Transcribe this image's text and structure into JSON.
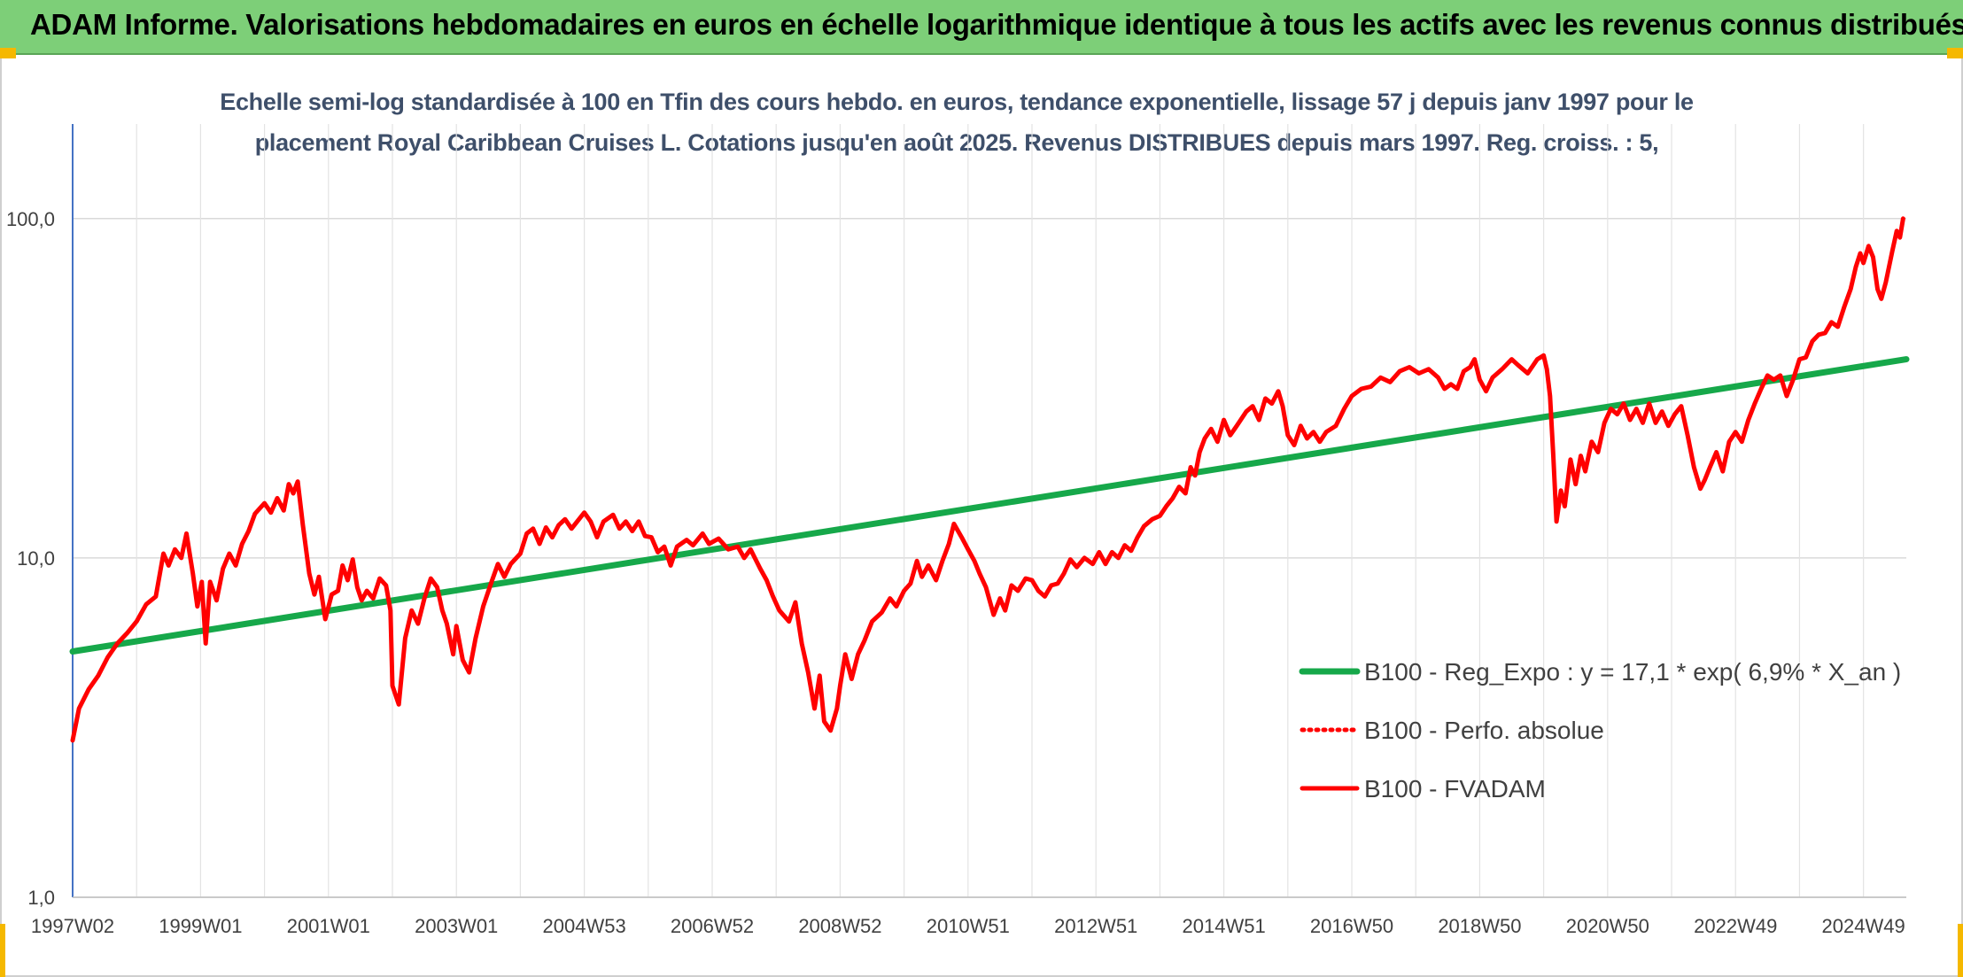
{
  "header": {
    "title": "ADAM Informe. Valorisations hebdomadaires en euros en échelle logarithmique identique à tous les actifs avec les revenus connus distribués"
  },
  "chart_data": {
    "type": "line",
    "title_line1": "Echelle semi-log standardisée à 100 en Tfin des cours hebdo. en euros, tendance exponentielle, lissage 57 j depuis janv 1997 pour le",
    "title_line2": "placement Royal Caribbean Cruises L. Cotations jusqu'en août 2025. Revenus DISTRIBUES depuis mars 1997. Reg. croiss. : 5,",
    "y_scale": "log",
    "ylim": [
      1,
      190
    ],
    "y_ticks": [
      1,
      10,
      100
    ],
    "y_tick_labels": [
      "1,0",
      "10,0",
      "100,0"
    ],
    "xlim": [
      1997.0,
      2025.67
    ],
    "x_ticks": [
      1997.0,
      1999.0,
      2001.0,
      2003.0,
      2005.0,
      2007.0,
      2009.0,
      2011.0,
      2013.0,
      2015.0,
      2017.0,
      2019.0,
      2021.0,
      2023.0,
      2025.0
    ],
    "x_tick_labels": [
      "1997W02",
      "1999W01",
      "2001W01",
      "2003W01",
      "2004W53",
      "2006W52",
      "2008W52",
      "2010W51",
      "2012W51",
      "2014W51",
      "2016W50",
      "2018W50",
      "2020W50",
      "2022W49",
      "2024W49"
    ],
    "grid": true,
    "legend_position": "right-center",
    "series": [
      {
        "name": "B100 - Reg_Expo : y = 17,1 * exp( 6,9% *  X_an )",
        "color": "#16a84a",
        "style": "solid",
        "points": [
          [
            1997.0,
            5.3
          ],
          [
            2025.67,
            38.5
          ]
        ]
      },
      {
        "name": "B100 - Perfo. absolue",
        "color": "#ff0000",
        "style": "dotted",
        "points": []
      },
      {
        "name": "B100 - FVADAM",
        "color": "#ff0000",
        "style": "solid",
        "points": [
          [
            1997.0,
            2.9
          ],
          [
            1997.1,
            3.6
          ],
          [
            1997.25,
            4.1
          ],
          [
            1997.4,
            4.5
          ],
          [
            1997.55,
            5.1
          ],
          [
            1997.7,
            5.6
          ],
          [
            1997.85,
            6.0
          ],
          [
            1998.0,
            6.5
          ],
          [
            1998.15,
            7.3
          ],
          [
            1998.3,
            7.7
          ],
          [
            1998.42,
            10.3
          ],
          [
            1998.5,
            9.5
          ],
          [
            1998.6,
            10.6
          ],
          [
            1998.7,
            10.0
          ],
          [
            1998.78,
            11.8
          ],
          [
            1998.88,
            9.0
          ],
          [
            1998.95,
            7.2
          ],
          [
            1999.02,
            8.5
          ],
          [
            1999.08,
            5.6
          ],
          [
            1999.15,
            8.5
          ],
          [
            1999.25,
            7.5
          ],
          [
            1999.35,
            9.3
          ],
          [
            1999.45,
            10.3
          ],
          [
            1999.55,
            9.5
          ],
          [
            1999.65,
            11.0
          ],
          [
            1999.75,
            12.0
          ],
          [
            1999.85,
            13.5
          ],
          [
            2000.0,
            14.5
          ],
          [
            2000.1,
            13.6
          ],
          [
            2000.2,
            15.0
          ],
          [
            2000.3,
            13.8
          ],
          [
            2000.38,
            16.5
          ],
          [
            2000.45,
            15.5
          ],
          [
            2000.52,
            16.8
          ],
          [
            2000.6,
            12.5
          ],
          [
            2000.7,
            9.0
          ],
          [
            2000.78,
            7.8
          ],
          [
            2000.85,
            8.8
          ],
          [
            2000.95,
            6.6
          ],
          [
            2001.05,
            7.8
          ],
          [
            2001.15,
            8.0
          ],
          [
            2001.22,
            9.5
          ],
          [
            2001.3,
            8.6
          ],
          [
            2001.38,
            9.9
          ],
          [
            2001.45,
            8.2
          ],
          [
            2001.52,
            7.5
          ],
          [
            2001.6,
            8.0
          ],
          [
            2001.7,
            7.6
          ],
          [
            2001.8,
            8.7
          ],
          [
            2001.9,
            8.3
          ],
          [
            2001.97,
            7.0
          ],
          [
            2002.0,
            4.2
          ],
          [
            2002.1,
            3.7
          ],
          [
            2002.2,
            5.8
          ],
          [
            2002.3,
            7.0
          ],
          [
            2002.4,
            6.4
          ],
          [
            2002.5,
            7.6
          ],
          [
            2002.6,
            8.7
          ],
          [
            2002.7,
            8.2
          ],
          [
            2002.78,
            7.0
          ],
          [
            2002.85,
            6.4
          ],
          [
            2002.95,
            5.2
          ],
          [
            2003.0,
            6.3
          ],
          [
            2003.1,
            5.0
          ],
          [
            2003.2,
            4.6
          ],
          [
            2003.3,
            5.8
          ],
          [
            2003.42,
            7.2
          ],
          [
            2003.55,
            8.5
          ],
          [
            2003.65,
            9.6
          ],
          [
            2003.75,
            8.8
          ],
          [
            2003.85,
            9.6
          ],
          [
            2004.0,
            10.3
          ],
          [
            2004.1,
            11.8
          ],
          [
            2004.2,
            12.2
          ],
          [
            2004.3,
            11.0
          ],
          [
            2004.4,
            12.3
          ],
          [
            2004.5,
            11.5
          ],
          [
            2004.6,
            12.5
          ],
          [
            2004.7,
            13.0
          ],
          [
            2004.8,
            12.2
          ],
          [
            2005.0,
            13.6
          ],
          [
            2005.1,
            12.8
          ],
          [
            2005.2,
            11.5
          ],
          [
            2005.3,
            12.8
          ],
          [
            2005.45,
            13.4
          ],
          [
            2005.55,
            12.2
          ],
          [
            2005.65,
            12.8
          ],
          [
            2005.75,
            12.0
          ],
          [
            2005.85,
            12.8
          ],
          [
            2005.95,
            11.6
          ],
          [
            2006.05,
            11.5
          ],
          [
            2006.15,
            10.4
          ],
          [
            2006.25,
            10.8
          ],
          [
            2006.35,
            9.5
          ],
          [
            2006.45,
            10.8
          ],
          [
            2006.6,
            11.3
          ],
          [
            2006.7,
            10.9
          ],
          [
            2006.85,
            11.8
          ],
          [
            2006.95,
            11.0
          ],
          [
            2007.1,
            11.4
          ],
          [
            2007.25,
            10.6
          ],
          [
            2007.4,
            10.8
          ],
          [
            2007.5,
            10.0
          ],
          [
            2007.6,
            10.6
          ],
          [
            2007.75,
            9.3
          ],
          [
            2007.85,
            8.6
          ],
          [
            2007.95,
            7.7
          ],
          [
            2008.05,
            7.0
          ],
          [
            2008.2,
            6.5
          ],
          [
            2008.3,
            7.4
          ],
          [
            2008.4,
            5.6
          ],
          [
            2008.5,
            4.6
          ],
          [
            2008.6,
            3.6
          ],
          [
            2008.68,
            4.5
          ],
          [
            2008.75,
            3.3
          ],
          [
            2008.85,
            3.1
          ],
          [
            2008.95,
            3.6
          ],
          [
            2009.0,
            4.2
          ],
          [
            2009.08,
            5.2
          ],
          [
            2009.18,
            4.4
          ],
          [
            2009.28,
            5.2
          ],
          [
            2009.38,
            5.7
          ],
          [
            2009.5,
            6.5
          ],
          [
            2009.65,
            6.9
          ],
          [
            2009.78,
            7.6
          ],
          [
            2009.88,
            7.2
          ],
          [
            2010.0,
            8.0
          ],
          [
            2010.1,
            8.4
          ],
          [
            2010.2,
            9.8
          ],
          [
            2010.28,
            8.8
          ],
          [
            2010.38,
            9.5
          ],
          [
            2010.5,
            8.6
          ],
          [
            2010.6,
            9.8
          ],
          [
            2010.7,
            11.0
          ],
          [
            2010.78,
            12.6
          ],
          [
            2010.9,
            11.5
          ],
          [
            2011.0,
            10.6
          ],
          [
            2011.1,
            9.8
          ],
          [
            2011.18,
            9.0
          ],
          [
            2011.28,
            8.2
          ],
          [
            2011.4,
            6.8
          ],
          [
            2011.5,
            7.6
          ],
          [
            2011.58,
            7.0
          ],
          [
            2011.68,
            8.3
          ],
          [
            2011.78,
            8.0
          ],
          [
            2011.9,
            8.7
          ],
          [
            2012.0,
            8.6
          ],
          [
            2012.1,
            8.0
          ],
          [
            2012.2,
            7.7
          ],
          [
            2012.3,
            8.3
          ],
          [
            2012.4,
            8.4
          ],
          [
            2012.5,
            9.0
          ],
          [
            2012.6,
            9.9
          ],
          [
            2012.7,
            9.4
          ],
          [
            2012.82,
            10.0
          ],
          [
            2012.95,
            9.6
          ],
          [
            2013.05,
            10.4
          ],
          [
            2013.15,
            9.6
          ],
          [
            2013.25,
            10.4
          ],
          [
            2013.35,
            10.0
          ],
          [
            2013.45,
            10.9
          ],
          [
            2013.55,
            10.5
          ],
          [
            2013.65,
            11.5
          ],
          [
            2013.75,
            12.4
          ],
          [
            2013.88,
            13.0
          ],
          [
            2014.0,
            13.3
          ],
          [
            2014.1,
            14.2
          ],
          [
            2014.2,
            15.0
          ],
          [
            2014.3,
            16.2
          ],
          [
            2014.4,
            15.5
          ],
          [
            2014.48,
            18.5
          ],
          [
            2014.55,
            17.5
          ],
          [
            2014.62,
            20.5
          ],
          [
            2014.7,
            22.5
          ],
          [
            2014.8,
            24.0
          ],
          [
            2014.9,
            22.0
          ],
          [
            2015.0,
            25.5
          ],
          [
            2015.1,
            23.0
          ],
          [
            2015.2,
            24.5
          ],
          [
            2015.35,
            27.0
          ],
          [
            2015.45,
            28.0
          ],
          [
            2015.55,
            25.5
          ],
          [
            2015.65,
            29.5
          ],
          [
            2015.75,
            28.5
          ],
          [
            2015.85,
            31.0
          ],
          [
            2015.92,
            28.0
          ],
          [
            2016.0,
            23.0
          ],
          [
            2016.1,
            21.5
          ],
          [
            2016.2,
            24.5
          ],
          [
            2016.3,
            22.5
          ],
          [
            2016.4,
            23.5
          ],
          [
            2016.5,
            22.0
          ],
          [
            2016.6,
            23.5
          ],
          [
            2016.75,
            24.5
          ],
          [
            2016.88,
            27.5
          ],
          [
            2017.0,
            30.0
          ],
          [
            2017.15,
            31.5
          ],
          [
            2017.3,
            32.0
          ],
          [
            2017.45,
            34.0
          ],
          [
            2017.6,
            33.0
          ],
          [
            2017.75,
            35.5
          ],
          [
            2017.9,
            36.5
          ],
          [
            2018.05,
            35.0
          ],
          [
            2018.2,
            36.0
          ],
          [
            2018.35,
            34.0
          ],
          [
            2018.45,
            31.5
          ],
          [
            2018.55,
            32.5
          ],
          [
            2018.65,
            31.5
          ],
          [
            2018.75,
            35.5
          ],
          [
            2018.85,
            36.5
          ],
          [
            2018.92,
            38.5
          ],
          [
            2019.0,
            33.5
          ],
          [
            2019.1,
            31.0
          ],
          [
            2019.2,
            34.0
          ],
          [
            2019.35,
            36.0
          ],
          [
            2019.5,
            38.5
          ],
          [
            2019.6,
            37.0
          ],
          [
            2019.75,
            35.0
          ],
          [
            2019.9,
            38.5
          ],
          [
            2020.0,
            39.5
          ],
          [
            2020.05,
            36.0
          ],
          [
            2020.1,
            30.0
          ],
          [
            2020.15,
            20.0
          ],
          [
            2020.2,
            12.8
          ],
          [
            2020.27,
            15.8
          ],
          [
            2020.33,
            14.2
          ],
          [
            2020.42,
            19.5
          ],
          [
            2020.5,
            16.5
          ],
          [
            2020.58,
            20.0
          ],
          [
            2020.65,
            18.0
          ],
          [
            2020.75,
            22.0
          ],
          [
            2020.85,
            20.5
          ],
          [
            2020.95,
            25.0
          ],
          [
            2021.05,
            27.5
          ],
          [
            2021.15,
            26.5
          ],
          [
            2021.25,
            28.5
          ],
          [
            2021.35,
            25.5
          ],
          [
            2021.45,
            27.5
          ],
          [
            2021.55,
            25.0
          ],
          [
            2021.65,
            28.5
          ],
          [
            2021.75,
            25.0
          ],
          [
            2021.85,
            27.0
          ],
          [
            2021.95,
            24.5
          ],
          [
            2022.05,
            26.5
          ],
          [
            2022.15,
            28.0
          ],
          [
            2022.25,
            23.0
          ],
          [
            2022.35,
            18.5
          ],
          [
            2022.45,
            16.0
          ],
          [
            2022.52,
            17.0
          ],
          [
            2022.6,
            18.5
          ],
          [
            2022.7,
            20.5
          ],
          [
            2022.8,
            18.0
          ],
          [
            2022.9,
            22.0
          ],
          [
            2023.0,
            23.5
          ],
          [
            2023.1,
            22.0
          ],
          [
            2023.2,
            25.5
          ],
          [
            2023.3,
            28.5
          ],
          [
            2023.4,
            31.5
          ],
          [
            2023.5,
            34.5
          ],
          [
            2023.6,
            33.5
          ],
          [
            2023.7,
            34.5
          ],
          [
            2023.8,
            30.0
          ],
          [
            2023.9,
            33.5
          ],
          [
            2024.0,
            38.5
          ],
          [
            2024.1,
            39.0
          ],
          [
            2024.2,
            43.5
          ],
          [
            2024.3,
            45.5
          ],
          [
            2024.4,
            46.0
          ],
          [
            2024.5,
            49.5
          ],
          [
            2024.6,
            48.0
          ],
          [
            2024.7,
            55.0
          ],
          [
            2024.8,
            62.0
          ],
          [
            2024.88,
            72.0
          ],
          [
            2024.95,
            79.0
          ],
          [
            2025.0,
            74.0
          ],
          [
            2025.08,
            83.0
          ],
          [
            2025.15,
            77.0
          ],
          [
            2025.22,
            62.0
          ],
          [
            2025.28,
            58.0
          ],
          [
            2025.35,
            65.0
          ],
          [
            2025.45,
            80.0
          ],
          [
            2025.52,
            92.0
          ],
          [
            2025.57,
            88.0
          ],
          [
            2025.62,
            100.0
          ]
        ]
      }
    ]
  }
}
